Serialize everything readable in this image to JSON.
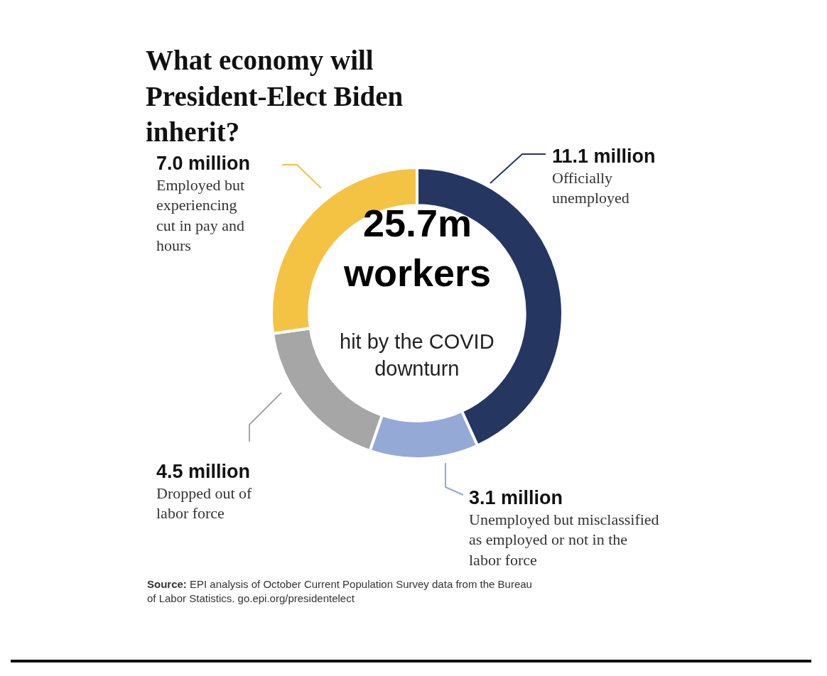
{
  "chart_data": {
    "type": "donut",
    "title": "What economy will President-Elect Biden inherit?",
    "categories": [
      "Officially unemployed",
      "Unemployed but misclassified as employed or not in the labor force",
      "Dropped out of labor force",
      "Employed but experiencing cut in pay and hours"
    ],
    "values": [
      11.1,
      3.1,
      4.5,
      7.0
    ],
    "value_labels": [
      "11.1 million",
      "3.1 million",
      "4.5 million",
      "7.0 million"
    ],
    "colors": [
      "#253760",
      "#94a9d6",
      "#a6a6a6",
      "#f4c343"
    ],
    "annotations": [
      "25.7m workers",
      "hit by the COVID downturn",
      "Source: EPI analysis of October Current Population Survey data from the Bureau of Labor Statistics. go.epi.org/presidentelect"
    ],
    "legend": false
  }
}
